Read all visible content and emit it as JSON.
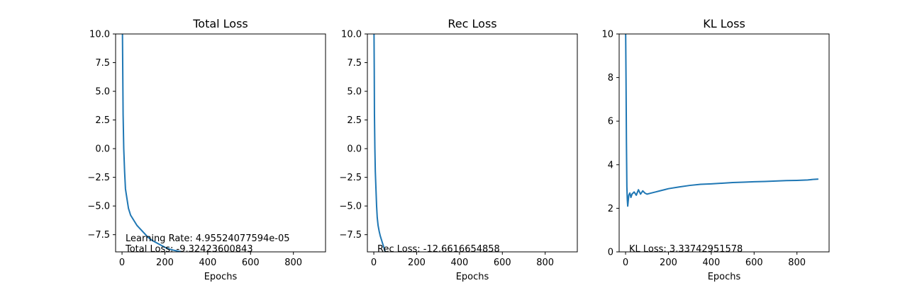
{
  "chart_data": [
    {
      "type": "line",
      "title": "Total Loss",
      "xlabel": "Epochs",
      "ylabel": "",
      "xlim": [
        -30,
        950
      ],
      "ylim": [
        -9,
        10
      ],
      "xticks": [
        0,
        200,
        400,
        600,
        800
      ],
      "xtick_labels": [
        "0",
        "200",
        "400",
        "600",
        "800"
      ],
      "yticks": [
        -7.5,
        -5.0,
        -2.5,
        0.0,
        2.5,
        5.0,
        7.5,
        10.0
      ],
      "ytick_labels": [
        "−7.5",
        "−5.0",
        "−2.5",
        "0.0",
        "2.5",
        "5.0",
        "7.5",
        "10.0"
      ],
      "series": [
        {
          "name": "Total Loss",
          "color": "#1f77b4",
          "x": [
            0,
            2,
            5,
            8,
            12,
            16,
            20,
            25,
            30,
            40,
            50,
            60,
            70,
            80,
            90,
            100,
            120,
            140,
            160,
            180,
            200,
            220,
            240,
            260,
            280,
            300
          ],
          "y": [
            12,
            10,
            3.0,
            0.0,
            -2.0,
            -3.5,
            -4.0,
            -4.6,
            -5.2,
            -5.8,
            -6.1,
            -6.4,
            -6.7,
            -6.9,
            -7.1,
            -7.3,
            -7.7,
            -8.0,
            -8.2,
            -8.4,
            -8.6,
            -8.75,
            -8.85,
            -8.93,
            -9.0,
            -9.1
          ]
        }
      ],
      "annotations": [
        "Learning Rate: 4.95524077594e-05",
        "Total Loss: -9.32423600843"
      ]
    },
    {
      "type": "line",
      "title": "Rec Loss",
      "xlabel": "Epochs",
      "ylabel": "",
      "xlim": [
        -30,
        950
      ],
      "ylim": [
        -9,
        10
      ],
      "xticks": [
        0,
        200,
        400,
        600,
        800
      ],
      "xtick_labels": [
        "0",
        "200",
        "400",
        "600",
        "800"
      ],
      "yticks": [
        -7.5,
        -5.0,
        -2.5,
        0.0,
        2.5,
        5.0,
        7.5,
        10.0
      ],
      "ytick_labels": [
        "−7.5",
        "−5.0",
        "−2.5",
        "0.0",
        "2.5",
        "5.0",
        "7.5",
        "10.0"
      ],
      "series": [
        {
          "name": "Rec Loss",
          "color": "#1f77b4",
          "x": [
            0,
            1,
            2,
            3,
            5,
            7,
            10,
            13,
            16,
            20,
            25,
            30,
            35,
            40,
            45,
            50,
            55
          ],
          "y": [
            12,
            10,
            7.0,
            3.0,
            0.0,
            -2.0,
            -3.5,
            -5.0,
            -6.0,
            -6.7,
            -7.2,
            -7.6,
            -7.9,
            -8.2,
            -8.5,
            -8.8,
            -9.1
          ]
        }
      ],
      "annotations": [
        "Rec Loss: -12.6616654858"
      ]
    },
    {
      "type": "line",
      "title": "KL Loss",
      "xlabel": "Epochs",
      "ylabel": "",
      "xlim": [
        -30,
        950
      ],
      "ylim": [
        0,
        10
      ],
      "xticks": [
        0,
        200,
        400,
        600,
        800
      ],
      "xtick_labels": [
        "0",
        "200",
        "400",
        "600",
        "800"
      ],
      "yticks": [
        0,
        2,
        4,
        6,
        8,
        10
      ],
      "ytick_labels": [
        "0",
        "2",
        "4",
        "6",
        "8",
        "10"
      ],
      "series": [
        {
          "name": "KL Loss",
          "color": "#1f77b4",
          "x": [
            0,
            2,
            4,
            6,
            8,
            10,
            12,
            15,
            20,
            25,
            30,
            40,
            50,
            60,
            70,
            80,
            90,
            100,
            120,
            140,
            160,
            180,
            200,
            250,
            300,
            350,
            400,
            450,
            500,
            550,
            600,
            650,
            700,
            750,
            800,
            850,
            880,
            900
          ],
          "y": [
            10.5,
            8.0,
            5.0,
            3.0,
            2.4,
            2.1,
            2.3,
            2.6,
            2.7,
            2.5,
            2.65,
            2.75,
            2.6,
            2.85,
            2.65,
            2.8,
            2.7,
            2.65,
            2.7,
            2.75,
            2.8,
            2.85,
            2.9,
            2.98,
            3.05,
            3.1,
            3.12,
            3.15,
            3.18,
            3.2,
            3.22,
            3.23,
            3.25,
            3.27,
            3.28,
            3.3,
            3.33,
            3.34
          ]
        }
      ],
      "annotations": [
        "KL Loss: 3.33742951578"
      ]
    }
  ]
}
